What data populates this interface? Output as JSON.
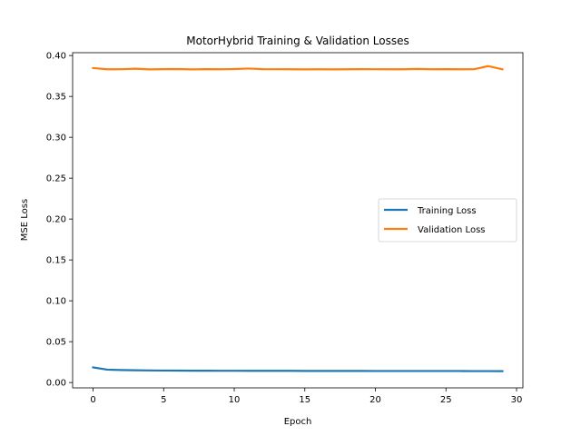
{
  "chart_data": {
    "type": "line",
    "title": "MotorHybrid Training & Validation Losses",
    "xlabel": "Epoch",
    "ylabel": "MSE Loss",
    "xlim": [
      -1.45,
      30.45
    ],
    "ylim": [
      -0.0065,
      0.4035
    ],
    "xticks": [
      0,
      5,
      10,
      15,
      20,
      25,
      30
    ],
    "xtick_labels": [
      "0",
      "5",
      "10",
      "15",
      "20",
      "25",
      "30"
    ],
    "yticks": [
      0.0,
      0.05,
      0.1,
      0.15,
      0.2,
      0.25,
      0.3,
      0.35,
      0.4
    ],
    "ytick_labels": [
      "0.00",
      "0.05",
      "0.10",
      "0.15",
      "0.20",
      "0.25",
      "0.30",
      "0.35",
      "0.40"
    ],
    "grid": false,
    "legend_position": "center-right",
    "x": [
      0,
      1,
      2,
      3,
      4,
      5,
      6,
      7,
      8,
      9,
      10,
      11,
      12,
      13,
      14,
      15,
      16,
      17,
      18,
      19,
      20,
      21,
      22,
      23,
      24,
      25,
      26,
      27,
      28,
      29
    ],
    "series": [
      {
        "name": "Training Loss",
        "color": "#1f77b4",
        "values": [
          0.0185,
          0.0158,
          0.0153,
          0.015,
          0.0148,
          0.0147,
          0.0146,
          0.0145,
          0.0145,
          0.0144,
          0.0144,
          0.0143,
          0.0143,
          0.0143,
          0.0143,
          0.0142,
          0.0142,
          0.0142,
          0.0142,
          0.0142,
          0.0141,
          0.0141,
          0.0141,
          0.0141,
          0.0141,
          0.0141,
          0.0141,
          0.014,
          0.014,
          0.0139
        ]
      },
      {
        "name": "Validation Loss",
        "color": "#ff7f0e",
        "values": [
          0.3847,
          0.3832,
          0.3833,
          0.3839,
          0.3831,
          0.3834,
          0.3835,
          0.3831,
          0.3834,
          0.3832,
          0.3835,
          0.3841,
          0.3834,
          0.3833,
          0.3832,
          0.3831,
          0.3832,
          0.3831,
          0.3832,
          0.3834,
          0.3833,
          0.3832,
          0.3832,
          0.3836,
          0.3832,
          0.3834,
          0.3832,
          0.3833,
          0.3871,
          0.3831
        ]
      }
    ]
  }
}
